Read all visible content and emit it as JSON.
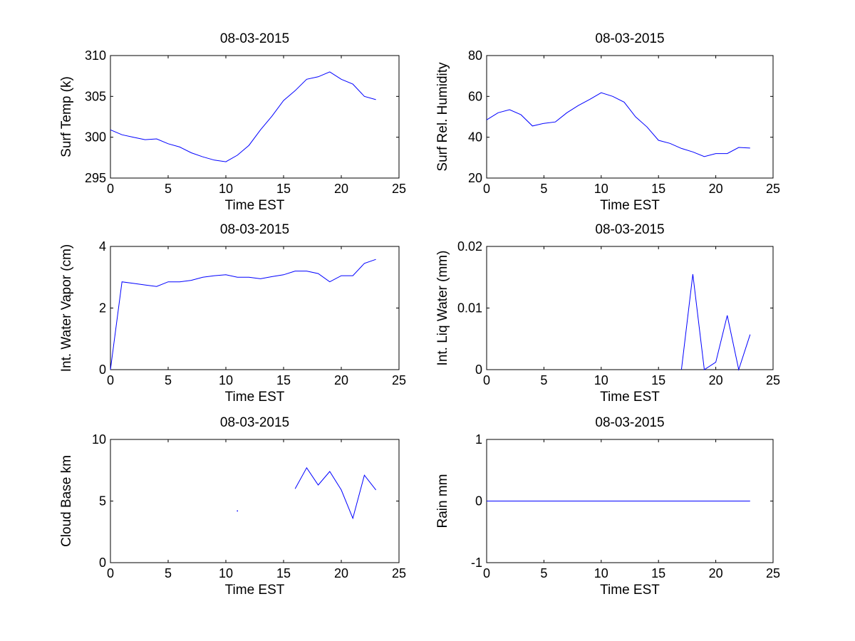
{
  "figure": {
    "background": "#ffffff",
    "line_color": "#0000ff",
    "axes_color": "#000000"
  },
  "chart_data": [
    {
      "id": "surf-temp",
      "type": "line",
      "title": "08-03-2015",
      "xlabel": "Time EST",
      "ylabel": "Surf Temp (k)",
      "xlim": [
        0,
        25
      ],
      "ylim": [
        295,
        310
      ],
      "xticks": [
        0,
        5,
        10,
        15,
        20,
        25
      ],
      "yticks": [
        295,
        300,
        305,
        310
      ],
      "xtick_labels": [
        "0",
        "5",
        "10",
        "15",
        "20",
        "25"
      ],
      "ytick_labels": [
        "295",
        "300",
        "305",
        "310"
      ],
      "series": [
        {
          "name": "Surf Temp",
          "segments": [
            {
              "x": [
                0,
                1,
                2,
                3,
                4,
                5,
                6,
                7,
                8,
                9,
                10,
                11,
                12,
                13,
                14,
                15,
                16,
                17,
                18,
                19,
                20,
                21,
                22,
                23
              ],
              "y": [
                300.9,
                300.3,
                300.0,
                299.7,
                299.8,
                299.2,
                298.8,
                298.1,
                297.6,
                297.2,
                297.0,
                297.8,
                299.0,
                300.9,
                302.6,
                304.5,
                305.7,
                307.1,
                307.4,
                308.0,
                307.1,
                306.5,
                305.0,
                304.6
              ]
            }
          ]
        }
      ]
    },
    {
      "id": "surf-rh",
      "type": "line",
      "title": "08-03-2015",
      "xlabel": "Time EST",
      "ylabel": "Surf Rel. Humidity",
      "xlim": [
        0,
        25
      ],
      "ylim": [
        20,
        80
      ],
      "xticks": [
        0,
        5,
        10,
        15,
        20,
        25
      ],
      "yticks": [
        20,
        40,
        60,
        80
      ],
      "xtick_labels": [
        "0",
        "5",
        "10",
        "15",
        "20",
        "25"
      ],
      "ytick_labels": [
        "20",
        "40",
        "60",
        "80"
      ],
      "series": [
        {
          "name": "Surf Rel. Humidity",
          "segments": [
            {
              "x": [
                0,
                1,
                2,
                3,
                4,
                5,
                6,
                7,
                8,
                9,
                10,
                11,
                12,
                13,
                14,
                15,
                16,
                17,
                18,
                19,
                20,
                21,
                22,
                23
              ],
              "y": [
                48.5,
                52.0,
                53.5,
                51.0,
                45.5,
                46.8,
                47.5,
                52.0,
                55.5,
                58.5,
                61.8,
                60.0,
                57.2,
                50.0,
                45.0,
                38.5,
                37.0,
                34.5,
                32.8,
                30.5,
                32.0,
                32.0,
                35.0,
                34.7
              ]
            }
          ]
        }
      ]
    },
    {
      "id": "water-vapor",
      "type": "line",
      "title": "08-03-2015",
      "xlabel": "Time EST",
      "ylabel": "Int. Water Vapor (cm)",
      "xlim": [
        0,
        25
      ],
      "ylim": [
        0,
        4
      ],
      "xticks": [
        0,
        5,
        10,
        15,
        20,
        25
      ],
      "yticks": [
        0,
        2,
        4
      ],
      "xtick_labels": [
        "0",
        "5",
        "10",
        "15",
        "20",
        "25"
      ],
      "ytick_labels": [
        "0",
        "2",
        "4"
      ],
      "series": [
        {
          "name": "Int. Water Vapor",
          "segments": [
            {
              "x": [
                0,
                1,
                2,
                3,
                4,
                5,
                6,
                7,
                8,
                9,
                10,
                11,
                12,
                13,
                14,
                15,
                16,
                17,
                18,
                19,
                20,
                21,
                22,
                23
              ],
              "y": [
                0.0,
                2.85,
                2.8,
                2.75,
                2.7,
                2.85,
                2.85,
                2.9,
                3.0,
                3.05,
                3.08,
                3.0,
                3.0,
                2.95,
                3.02,
                3.08,
                3.2,
                3.2,
                3.12,
                2.85,
                3.05,
                3.05,
                3.45,
                3.58
              ]
            }
          ]
        }
      ]
    },
    {
      "id": "liq-water",
      "type": "line",
      "title": "08-03-2015",
      "xlabel": "Time EST",
      "ylabel": "Int. Liq Water (mm)",
      "xlim": [
        0,
        25
      ],
      "ylim": [
        0,
        0.02
      ],
      "xticks": [
        0,
        5,
        10,
        15,
        20,
        25
      ],
      "yticks": [
        0,
        0.01,
        0.02
      ],
      "xtick_labels": [
        "0",
        "5",
        "10",
        "15",
        "20",
        "25"
      ],
      "ytick_labels": [
        "0",
        "0.01",
        "0.02"
      ],
      "series": [
        {
          "name": "Int. Liq Water",
          "segments": [
            {
              "x": [
                17,
                18,
                19,
                20,
                21,
                22,
                23
              ],
              "y": [
                0.0,
                0.0155,
                0.0,
                0.0012,
                0.0088,
                0.0,
                0.0057
              ]
            }
          ]
        }
      ]
    },
    {
      "id": "cloud-base",
      "type": "line",
      "title": "08-03-2015",
      "xlabel": "Time EST",
      "ylabel": "Cloud Base km",
      "xlim": [
        0,
        25
      ],
      "ylim": [
        0,
        10
      ],
      "xticks": [
        0,
        5,
        10,
        15,
        20,
        25
      ],
      "yticks": [
        0,
        5,
        10
      ],
      "xtick_labels": [
        "0",
        "5",
        "10",
        "15",
        "20",
        "25"
      ],
      "ytick_labels": [
        "0",
        "5",
        "10"
      ],
      "series": [
        {
          "name": "Cloud Base",
          "segments": [
            {
              "x": [
                11
              ],
              "y": [
                4.2
              ]
            },
            {
              "x": [
                16,
                17,
                18,
                19,
                20,
                21,
                22,
                23
              ],
              "y": [
                6.0,
                7.7,
                6.3,
                7.4,
                5.9,
                3.6,
                7.1,
                5.9
              ]
            }
          ]
        }
      ]
    },
    {
      "id": "rain",
      "type": "line",
      "title": "08-03-2015",
      "xlabel": "Time EST",
      "ylabel": "Rain mm",
      "xlim": [
        0,
        25
      ],
      "ylim": [
        -1,
        1
      ],
      "xticks": [
        0,
        5,
        10,
        15,
        20,
        25
      ],
      "yticks": [
        -1,
        0,
        1
      ],
      "xtick_labels": [
        "0",
        "5",
        "10",
        "15",
        "20",
        "25"
      ],
      "ytick_labels": [
        "-1",
        "0",
        "1"
      ],
      "series": [
        {
          "name": "Rain",
          "segments": [
            {
              "x": [
                0,
                23
              ],
              "y": [
                0,
                0
              ]
            }
          ]
        }
      ]
    }
  ]
}
